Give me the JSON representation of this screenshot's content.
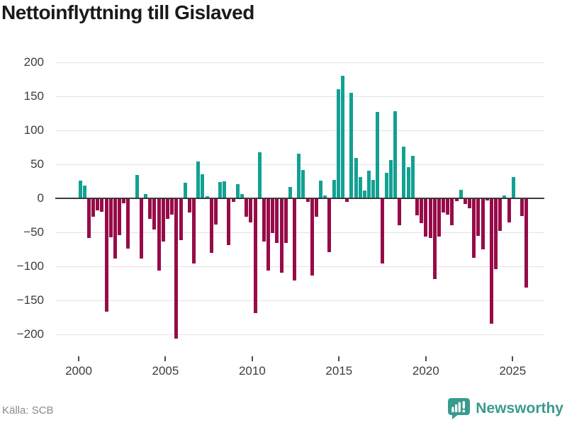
{
  "title": "Nettoinflyttning till Gislaved",
  "source": "Källa: SCB",
  "logo": {
    "text": "Newsworthy",
    "icon": "newsworthy-speech-bubble-chart-icon",
    "color": "#3a9a8f"
  },
  "colors": {
    "positive": "#12a193",
    "negative": "#970b48",
    "grid": "#e3e3e3",
    "zero_line": "#3b3b3b",
    "axis_text": "#3d3d3d",
    "source_text": "#8a8a8a",
    "title_text": "#1a1a1a"
  },
  "y_axis": {
    "ticks": [
      200,
      150,
      100,
      50,
      0,
      -50,
      -100,
      -150,
      -200
    ],
    "labels": [
      "200",
      "150",
      "100",
      "50",
      "0",
      "−50",
      "−100",
      "−150",
      "−200"
    ]
  },
  "x_axis": {
    "ticks": [
      2000,
      2005,
      2010,
      2015,
      2020,
      2025
    ],
    "labels": [
      "2000",
      "2005",
      "2010",
      "2015",
      "2020",
      "2025"
    ]
  },
  "chart_data": {
    "type": "bar",
    "title": "Nettoinflyttning till Gislaved",
    "xlabel": "",
    "ylabel": "",
    "ylim": [
      -220,
      210
    ],
    "grid": true,
    "legend": "none",
    "x": [
      "2000Q1",
      "2000Q2",
      "2000Q3",
      "2000Q4",
      "2001Q1",
      "2001Q2",
      "2001Q3",
      "2001Q4",
      "2002Q1",
      "2002Q2",
      "2002Q3",
      "2002Q4",
      "2003Q1",
      "2003Q2",
      "2003Q3",
      "2003Q4",
      "2004Q1",
      "2004Q2",
      "2004Q3",
      "2004Q4",
      "2005Q1",
      "2005Q2",
      "2005Q3",
      "2005Q4",
      "2006Q1",
      "2006Q2",
      "2006Q3",
      "2006Q4",
      "2007Q1",
      "2007Q2",
      "2007Q3",
      "2007Q4",
      "2008Q1",
      "2008Q2",
      "2008Q3",
      "2008Q4",
      "2009Q1",
      "2009Q2",
      "2009Q3",
      "2009Q4",
      "2010Q1",
      "2010Q2",
      "2010Q3",
      "2010Q4",
      "2011Q1",
      "2011Q2",
      "2011Q3",
      "2011Q4",
      "2012Q1",
      "2012Q2",
      "2012Q3",
      "2012Q4",
      "2013Q1",
      "2013Q2",
      "2013Q3",
      "2013Q4",
      "2014Q1",
      "2014Q2",
      "2014Q3",
      "2014Q4",
      "2015Q1",
      "2015Q2",
      "2015Q3",
      "2015Q4",
      "2016Q1",
      "2016Q2",
      "2016Q3",
      "2016Q4",
      "2017Q1",
      "2017Q2",
      "2017Q3",
      "2017Q4",
      "2018Q1",
      "2018Q2",
      "2018Q3",
      "2018Q4",
      "2019Q1",
      "2019Q2",
      "2019Q3",
      "2019Q4",
      "2020Q1",
      "2020Q2",
      "2020Q3",
      "2020Q4",
      "2021Q1",
      "2021Q2",
      "2021Q3",
      "2021Q4",
      "2022Q1",
      "2022Q2",
      "2022Q3",
      "2022Q4",
      "2023Q1",
      "2023Q2",
      "2023Q3",
      "2023Q4",
      "2024Q1",
      "2024Q2",
      "2024Q3",
      "2024Q4",
      "2025Q1",
      "2025Q2",
      "2025Q3"
    ],
    "values": [
      26,
      19,
      -57,
      -26,
      -17,
      -19,
      -166,
      -56,
      -88,
      -53,
      -6,
      -73,
      0,
      34,
      -88,
      6,
      -29,
      -45,
      -105,
      -62,
      -29,
      -23,
      -205,
      -60,
      23,
      -20,
      -95,
      54,
      35,
      3,
      -79,
      -38,
      24,
      25,
      -68,
      -4,
      21,
      6,
      -26,
      -34,
      -168,
      68,
      -63,
      -105,
      -50,
      -65,
      -108,
      -65,
      17,
      -120,
      66,
      42,
      -4,
      -113,
      -26,
      26,
      4,
      -78,
      27,
      160,
      180,
      -4,
      155,
      59,
      31,
      11,
      41,
      27,
      127,
      -95,
      38,
      56,
      128,
      -39,
      76,
      46,
      62,
      -24,
      -35,
      -55,
      -57,
      -118,
      -55,
      -20,
      -23,
      -39,
      -3,
      12,
      -7,
      -14,
      -86,
      -54,
      -74,
      -2,
      -183,
      -103,
      -47,
      4,
      -34,
      31,
      0,
      -25,
      -130
    ]
  }
}
